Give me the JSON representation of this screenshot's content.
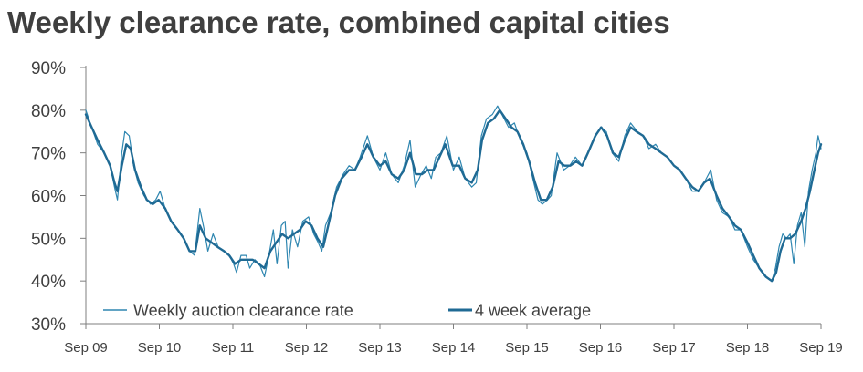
{
  "chart_data": {
    "type": "line",
    "title": "Weekly clearance rate, combined capital cities",
    "xlabel": "",
    "ylabel": "",
    "ylim": [
      30,
      90
    ],
    "xlim": [
      2009.67,
      2019.67
    ],
    "y_ticks": [
      "30%",
      "40%",
      "50%",
      "60%",
      "70%",
      "80%",
      "90%"
    ],
    "x_ticks": [
      "Sep 09",
      "Sep 10",
      "Sep 11",
      "Sep 12",
      "Sep 13",
      "Sep 14",
      "Sep 15",
      "Sep 16",
      "Sep 17",
      "Sep 18",
      "Sep 19"
    ],
    "legend_position": "bottom-left",
    "colors": {
      "weekly": "#2e86b0",
      "average": "#1f6a94",
      "axis": "#7f7f7f",
      "title": "#3f3f3f"
    },
    "series": [
      {
        "name": "Weekly auction clearance rate",
        "style": "thin",
        "points": [
          [
            2009.67,
            80
          ],
          [
            2009.75,
            76
          ],
          [
            2009.83,
            72
          ],
          [
            2009.92,
            70
          ],
          [
            2010.0,
            67
          ],
          [
            2010.06,
            62
          ],
          [
            2010.1,
            59
          ],
          [
            2010.16,
            70
          ],
          [
            2010.2,
            75
          ],
          [
            2010.26,
            74
          ],
          [
            2010.32,
            67
          ],
          [
            2010.38,
            63
          ],
          [
            2010.46,
            60
          ],
          [
            2010.55,
            58
          ],
          [
            2010.62,
            59
          ],
          [
            2010.68,
            61
          ],
          [
            2010.75,
            57
          ],
          [
            2010.83,
            54
          ],
          [
            2010.92,
            52
          ],
          [
            2011.0,
            50
          ],
          [
            2011.08,
            47
          ],
          [
            2011.15,
            46
          ],
          [
            2011.22,
            57
          ],
          [
            2011.28,
            52
          ],
          [
            2011.33,
            47
          ],
          [
            2011.4,
            51
          ],
          [
            2011.47,
            48
          ],
          [
            2011.55,
            47
          ],
          [
            2011.62,
            46
          ],
          [
            2011.68,
            44
          ],
          [
            2011.72,
            42
          ],
          [
            2011.78,
            46
          ],
          [
            2011.85,
            46
          ],
          [
            2011.9,
            43
          ],
          [
            2011.97,
            45
          ],
          [
            2012.03,
            44
          ],
          [
            2012.1,
            41
          ],
          [
            2012.17,
            47
          ],
          [
            2012.22,
            52
          ],
          [
            2012.27,
            44
          ],
          [
            2012.33,
            53
          ],
          [
            2012.38,
            54
          ],
          [
            2012.42,
            43
          ],
          [
            2012.48,
            52
          ],
          [
            2012.55,
            48
          ],
          [
            2012.62,
            54
          ],
          [
            2012.7,
            55
          ],
          [
            2012.77,
            51
          ],
          [
            2012.83,
            49
          ],
          [
            2012.88,
            47
          ],
          [
            2012.93,
            53
          ],
          [
            2013.0,
            56
          ],
          [
            2013.08,
            62
          ],
          [
            2013.17,
            65
          ],
          [
            2013.25,
            67
          ],
          [
            2013.33,
            66
          ],
          [
            2013.4,
            69
          ],
          [
            2013.5,
            74
          ],
          [
            2013.58,
            69
          ],
          [
            2013.67,
            66
          ],
          [
            2013.75,
            70
          ],
          [
            2013.83,
            65
          ],
          [
            2013.92,
            63
          ],
          [
            2014.0,
            67
          ],
          [
            2014.08,
            73
          ],
          [
            2014.15,
            62
          ],
          [
            2014.23,
            65
          ],
          [
            2014.3,
            67
          ],
          [
            2014.37,
            64
          ],
          [
            2014.43,
            69
          ],
          [
            2014.5,
            70
          ],
          [
            2014.58,
            74
          ],
          [
            2014.67,
            66
          ],
          [
            2014.75,
            69
          ],
          [
            2014.83,
            64
          ],
          [
            2014.92,
            62
          ],
          [
            2014.98,
            63
          ],
          [
            2015.05,
            74
          ],
          [
            2015.12,
            78
          ],
          [
            2015.2,
            79
          ],
          [
            2015.27,
            81
          ],
          [
            2015.33,
            79
          ],
          [
            2015.42,
            76
          ],
          [
            2015.5,
            77
          ],
          [
            2015.58,
            73
          ],
          [
            2015.67,
            70
          ],
          [
            2015.75,
            64
          ],
          [
            2015.82,
            59
          ],
          [
            2015.88,
            58
          ],
          [
            2015.95,
            59
          ],
          [
            2016.0,
            60
          ],
          [
            2016.08,
            70
          ],
          [
            2016.17,
            66
          ],
          [
            2016.25,
            67
          ],
          [
            2016.33,
            69
          ],
          [
            2016.42,
            67
          ],
          [
            2016.5,
            70
          ],
          [
            2016.58,
            73
          ],
          [
            2016.67,
            76
          ],
          [
            2016.75,
            75
          ],
          [
            2016.83,
            70
          ],
          [
            2016.92,
            68
          ],
          [
            2017.0,
            74
          ],
          [
            2017.08,
            77
          ],
          [
            2017.17,
            75
          ],
          [
            2017.25,
            74
          ],
          [
            2017.33,
            71
          ],
          [
            2017.42,
            72
          ],
          [
            2017.5,
            70
          ],
          [
            2017.58,
            69
          ],
          [
            2017.67,
            67
          ],
          [
            2017.75,
            66
          ],
          [
            2017.83,
            64
          ],
          [
            2017.92,
            61
          ],
          [
            2018.0,
            61
          ],
          [
            2018.08,
            63
          ],
          [
            2018.17,
            66
          ],
          [
            2018.25,
            59
          ],
          [
            2018.33,
            56
          ],
          [
            2018.42,
            55
          ],
          [
            2018.5,
            52
          ],
          [
            2018.58,
            52
          ],
          [
            2018.67,
            48
          ],
          [
            2018.75,
            45
          ],
          [
            2018.83,
            43
          ],
          [
            2018.92,
            41
          ],
          [
            2019.0,
            40
          ],
          [
            2019.05,
            43
          ],
          [
            2019.1,
            48
          ],
          [
            2019.15,
            51
          ],
          [
            2019.2,
            50
          ],
          [
            2019.25,
            51
          ],
          [
            2019.3,
            44
          ],
          [
            2019.35,
            53
          ],
          [
            2019.4,
            56
          ],
          [
            2019.45,
            48
          ],
          [
            2019.5,
            61
          ],
          [
            2019.55,
            66
          ],
          [
            2019.6,
            70
          ],
          [
            2019.63,
            74
          ],
          [
            2019.67,
            71
          ]
        ]
      },
      {
        "name": "4 week average",
        "style": "thick",
        "points": [
          [
            2009.67,
            79
          ],
          [
            2009.75,
            76
          ],
          [
            2009.83,
            73
          ],
          [
            2009.92,
            70
          ],
          [
            2010.0,
            67
          ],
          [
            2010.06,
            63
          ],
          [
            2010.1,
            61
          ],
          [
            2010.16,
            67
          ],
          [
            2010.22,
            72
          ],
          [
            2010.28,
            71
          ],
          [
            2010.34,
            66
          ],
          [
            2010.42,
            62
          ],
          [
            2010.5,
            59
          ],
          [
            2010.58,
            58
          ],
          [
            2010.66,
            59
          ],
          [
            2010.75,
            57
          ],
          [
            2010.83,
            54
          ],
          [
            2010.92,
            52
          ],
          [
            2011.0,
            50
          ],
          [
            2011.08,
            47
          ],
          [
            2011.16,
            47
          ],
          [
            2011.22,
            53
          ],
          [
            2011.3,
            50
          ],
          [
            2011.38,
            49
          ],
          [
            2011.46,
            48
          ],
          [
            2011.55,
            47
          ],
          [
            2011.62,
            46
          ],
          [
            2011.7,
            44
          ],
          [
            2011.78,
            45
          ],
          [
            2011.86,
            45
          ],
          [
            2011.94,
            45
          ],
          [
            2012.02,
            44
          ],
          [
            2012.1,
            43
          ],
          [
            2012.18,
            47
          ],
          [
            2012.26,
            49
          ],
          [
            2012.34,
            51
          ],
          [
            2012.42,
            50
          ],
          [
            2012.5,
            51
          ],
          [
            2012.58,
            52
          ],
          [
            2012.66,
            54
          ],
          [
            2012.74,
            53
          ],
          [
            2012.82,
            50
          ],
          [
            2012.9,
            48
          ],
          [
            2012.98,
            54
          ],
          [
            2013.06,
            60
          ],
          [
            2013.15,
            64
          ],
          [
            2013.25,
            66
          ],
          [
            2013.33,
            66
          ],
          [
            2013.42,
            69
          ],
          [
            2013.5,
            72
          ],
          [
            2013.58,
            69
          ],
          [
            2013.67,
            67
          ],
          [
            2013.75,
            68
          ],
          [
            2013.83,
            65
          ],
          [
            2013.92,
            64
          ],
          [
            2014.0,
            66
          ],
          [
            2014.08,
            70
          ],
          [
            2014.16,
            65
          ],
          [
            2014.24,
            65
          ],
          [
            2014.32,
            66
          ],
          [
            2014.4,
            66
          ],
          [
            2014.48,
            69
          ],
          [
            2014.56,
            72
          ],
          [
            2014.66,
            67
          ],
          [
            2014.75,
            67
          ],
          [
            2014.83,
            64
          ],
          [
            2014.92,
            63
          ],
          [
            2015.0,
            66
          ],
          [
            2015.06,
            73
          ],
          [
            2015.14,
            77
          ],
          [
            2015.22,
            78
          ],
          [
            2015.3,
            80
          ],
          [
            2015.38,
            78
          ],
          [
            2015.46,
            76
          ],
          [
            2015.54,
            75
          ],
          [
            2015.62,
            72
          ],
          [
            2015.7,
            68
          ],
          [
            2015.78,
            63
          ],
          [
            2015.86,
            59
          ],
          [
            2015.94,
            59
          ],
          [
            2016.02,
            62
          ],
          [
            2016.1,
            68
          ],
          [
            2016.18,
            67
          ],
          [
            2016.26,
            67
          ],
          [
            2016.34,
            68
          ],
          [
            2016.42,
            67
          ],
          [
            2016.5,
            70
          ],
          [
            2016.6,
            74
          ],
          [
            2016.68,
            76
          ],
          [
            2016.76,
            74
          ],
          [
            2016.84,
            70
          ],
          [
            2016.92,
            69
          ],
          [
            2017.0,
            73
          ],
          [
            2017.08,
            76
          ],
          [
            2017.16,
            75
          ],
          [
            2017.25,
            74
          ],
          [
            2017.33,
            72
          ],
          [
            2017.42,
            71
          ],
          [
            2017.5,
            70
          ],
          [
            2017.58,
            69
          ],
          [
            2017.67,
            67
          ],
          [
            2017.75,
            66
          ],
          [
            2017.83,
            64
          ],
          [
            2017.92,
            62
          ],
          [
            2018.0,
            61
          ],
          [
            2018.08,
            63
          ],
          [
            2018.16,
            64
          ],
          [
            2018.25,
            60
          ],
          [
            2018.33,
            57
          ],
          [
            2018.42,
            55
          ],
          [
            2018.5,
            53
          ],
          [
            2018.58,
            52
          ],
          [
            2018.67,
            49
          ],
          [
            2018.75,
            46
          ],
          [
            2018.83,
            43
          ],
          [
            2018.92,
            41
          ],
          [
            2019.0,
            40
          ],
          [
            2019.06,
            42
          ],
          [
            2019.12,
            47
          ],
          [
            2019.18,
            50
          ],
          [
            2019.25,
            50
          ],
          [
            2019.32,
            51
          ],
          [
            2019.4,
            54
          ],
          [
            2019.46,
            57
          ],
          [
            2019.52,
            61
          ],
          [
            2019.58,
            66
          ],
          [
            2019.63,
            70
          ],
          [
            2019.67,
            72
          ]
        ]
      }
    ]
  }
}
